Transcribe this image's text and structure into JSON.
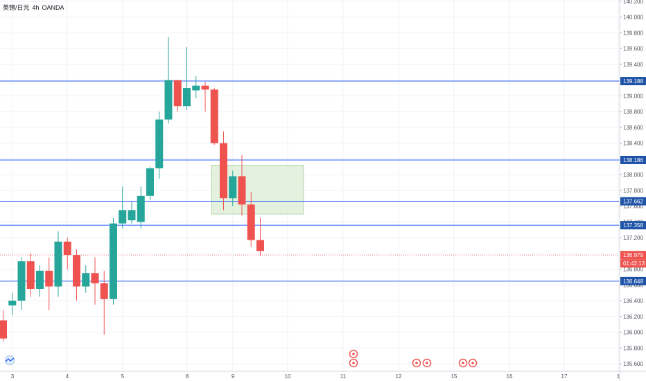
{
  "header": {
    "symbol": "英镑/日元",
    "interval": "4h",
    "source": "OANDA"
  },
  "colors": {
    "up": "#26a69a",
    "down": "#ef5350",
    "level_line": "#2962ff",
    "level_label_bg": "#1e53a8",
    "current_label_bg": "#ef5350",
    "zone_fill": "#d9ecd3",
    "grid": "#eef2f7",
    "axis_text": "#50535e"
  },
  "price_axis": {
    "ticks": [
      "140.200",
      "140.000",
      "139.800",
      "139.600",
      "139.400",
      "139.200",
      "139.000",
      "138.800",
      "138.600",
      "138.400",
      "138.200",
      "138.000",
      "137.800",
      "137.600",
      "137.400",
      "137.200",
      "137.000",
      "136.800",
      "136.600",
      "136.400",
      "136.200",
      "136.000",
      "135.800",
      "135.600"
    ],
    "current_price": "136.979",
    "countdown": "01:42:13"
  },
  "time_axis": {
    "labels": [
      "3",
      "4",
      "5",
      "8",
      "9",
      "10",
      "11",
      "12",
      "15",
      "16",
      "17",
      "1"
    ]
  },
  "chart_data": {
    "type": "candlestick",
    "title": "英镑/日元, 4h, OANDA",
    "ylim": [
      135.55,
      140.25
    ],
    "grid": true,
    "candles": [
      {
        "o": 136.15,
        "h": 136.28,
        "l": 135.88,
        "c": 135.92
      },
      {
        "o": 136.34,
        "h": 136.5,
        "l": 136.22,
        "c": 136.4
      },
      {
        "o": 136.4,
        "h": 136.95,
        "l": 136.28,
        "c": 136.9
      },
      {
        "o": 136.9,
        "h": 137.0,
        "l": 136.45,
        "c": 136.55
      },
      {
        "o": 136.55,
        "h": 136.85,
        "l": 136.45,
        "c": 136.78
      },
      {
        "o": 136.78,
        "h": 136.95,
        "l": 136.28,
        "c": 136.58
      },
      {
        "o": 136.58,
        "h": 137.28,
        "l": 136.45,
        "c": 137.15
      },
      {
        "o": 137.15,
        "h": 137.2,
        "l": 136.8,
        "c": 136.98
      },
      {
        "o": 136.98,
        "h": 137.05,
        "l": 136.4,
        "c": 136.58
      },
      {
        "o": 136.58,
        "h": 136.85,
        "l": 136.5,
        "c": 136.75
      },
      {
        "o": 136.75,
        "h": 136.95,
        "l": 136.35,
        "c": 136.62
      },
      {
        "o": 136.62,
        "h": 136.78,
        "l": 135.97,
        "c": 136.42
      },
      {
        "o": 136.42,
        "h": 137.45,
        "l": 136.35,
        "c": 137.38
      },
      {
        "o": 137.38,
        "h": 137.85,
        "l": 137.32,
        "c": 137.55
      },
      {
        "o": 137.42,
        "h": 137.65,
        "l": 137.38,
        "c": 137.55
      },
      {
        "o": 137.4,
        "h": 137.85,
        "l": 137.32,
        "c": 137.73
      },
      {
        "o": 137.73,
        "h": 138.1,
        "l": 137.68,
        "c": 138.08
      },
      {
        "o": 138.08,
        "h": 138.8,
        "l": 137.95,
        "c": 138.7
      },
      {
        "o": 138.7,
        "h": 139.75,
        "l": 138.65,
        "c": 139.2
      },
      {
        "o": 139.2,
        "h": 139.2,
        "l": 138.8,
        "c": 138.87
      },
      {
        "o": 138.87,
        "h": 139.62,
        "l": 138.82,
        "c": 139.1
      },
      {
        "o": 139.07,
        "h": 139.25,
        "l": 138.97,
        "c": 139.13
      },
      {
        "o": 139.13,
        "h": 139.18,
        "l": 138.8,
        "c": 139.08
      },
      {
        "o": 139.08,
        "h": 139.1,
        "l": 138.38,
        "c": 138.4
      },
      {
        "o": 138.4,
        "h": 138.55,
        "l": 137.55,
        "c": 137.7
      },
      {
        "o": 137.7,
        "h": 138.05,
        "l": 137.6,
        "c": 137.98
      },
      {
        "o": 137.98,
        "h": 138.25,
        "l": 137.48,
        "c": 137.62
      },
      {
        "o": 137.62,
        "h": 137.78,
        "l": 137.08,
        "c": 137.17
      },
      {
        "o": 137.17,
        "h": 137.45,
        "l": 136.97,
        "c": 137.03
      }
    ],
    "horizontal_levels": [
      139.188,
      138.186,
      137.662,
      137.358,
      136.648
    ],
    "zone": {
      "from_candle": 22.7,
      "to_candle": 32.7,
      "high": 138.12,
      "low": 137.5
    },
    "current_price_line": 136.979
  }
}
